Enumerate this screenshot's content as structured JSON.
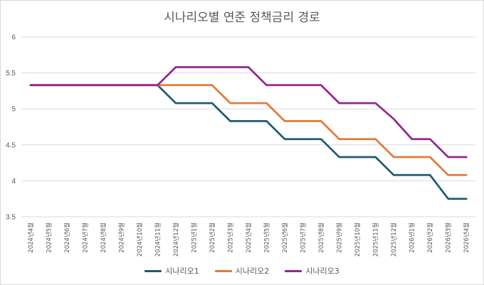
{
  "chart_data": {
    "type": "line",
    "title": "시나리오별 연준 정책금리 경로",
    "xlabel": "",
    "ylabel": "",
    "ylim": [
      3.5,
      6
    ],
    "yticks": [
      "3.5",
      "4",
      "4.5",
      "5",
      "5.5",
      "6"
    ],
    "grid": true,
    "legend_position": "bottom",
    "categories": [
      "2024년4월",
      "2024년5월",
      "2024년6월",
      "2024년7월",
      "2024년8월",
      "2024년9월",
      "2024년10월",
      "2024년11월",
      "2024년12월",
      "2025년1월",
      "2025년2월",
      "2025년3월",
      "2025년4월",
      "2025년5월",
      "2025년6월",
      "2025년7월",
      "2025년8월",
      "2025년9월",
      "2025년10월",
      "2025년11월",
      "2025년12월",
      "2026년1월",
      "2026년2월",
      "2026년3월",
      "2026년4월"
    ],
    "series": [
      {
        "name": "시나리오1",
        "color": "#1f5b73",
        "values": [
          5.33,
          5.33,
          5.33,
          5.33,
          5.33,
          5.33,
          5.33,
          5.33,
          5.08,
          5.08,
          5.08,
          4.83,
          4.83,
          4.83,
          4.58,
          4.58,
          4.58,
          4.33,
          4.33,
          4.33,
          4.08,
          4.08,
          4.08,
          3.75,
          3.75
        ]
      },
      {
        "name": "시나리오2",
        "color": "#e07b39",
        "values": [
          5.33,
          5.33,
          5.33,
          5.33,
          5.33,
          5.33,
          5.33,
          5.33,
          5.33,
          5.33,
          5.33,
          5.08,
          5.08,
          5.08,
          4.83,
          4.83,
          4.83,
          4.58,
          4.58,
          4.58,
          4.33,
          4.33,
          4.33,
          4.08,
          4.08
        ]
      },
      {
        "name": "시나리오3",
        "color": "#93278f",
        "values": [
          5.33,
          5.33,
          5.33,
          5.33,
          5.33,
          5.33,
          5.33,
          5.33,
          5.58,
          5.58,
          5.58,
          5.58,
          5.58,
          5.33,
          5.33,
          5.33,
          5.33,
          5.08,
          5.08,
          5.08,
          4.86,
          4.58,
          4.58,
          4.33,
          4.33
        ]
      }
    ]
  }
}
